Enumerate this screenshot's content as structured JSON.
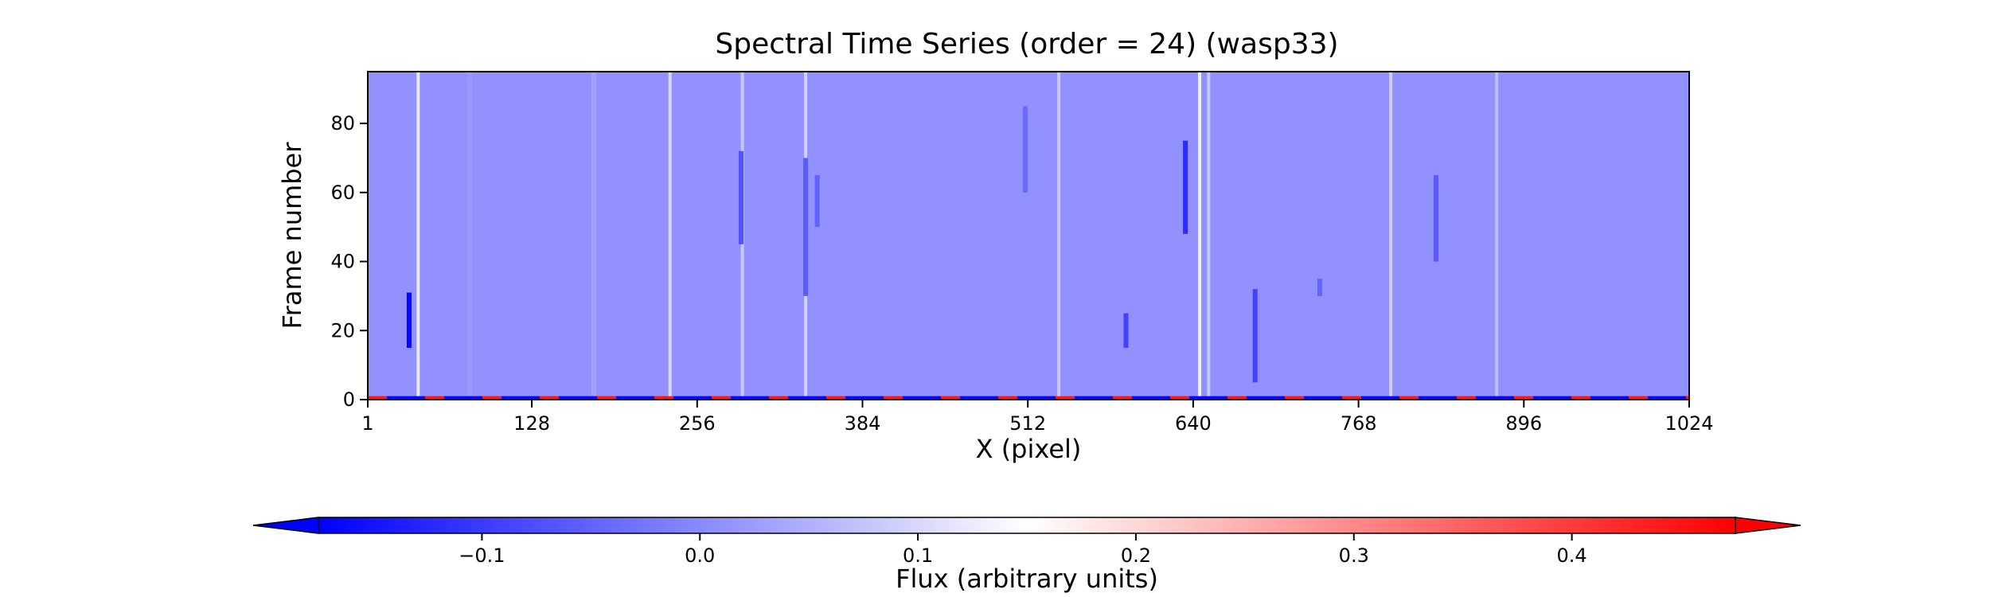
{
  "chart_data": {
    "type": "heatmap",
    "title": "Spectral Time Series (order = 24) (wasp33)",
    "xlabel": "X (pixel)",
    "ylabel": "Frame number",
    "xlim": [
      1,
      1024
    ],
    "ylim": [
      0,
      95
    ],
    "xticks": [
      1,
      128,
      256,
      384,
      512,
      640,
      768,
      896,
      1024
    ],
    "yticks": [
      0,
      20,
      40,
      60,
      80
    ],
    "grid": false,
    "colormap": "bwr",
    "colorbar": {
      "label": "Flux (arbitrary units)",
      "orientation": "horizontal",
      "placement": "bottom",
      "range": [
        -0.175,
        0.475
      ],
      "ticks": [
        -0.1,
        0.0,
        0.1,
        0.2,
        0.3,
        0.4
      ],
      "tick_labels": [
        "−0.1",
        "0.0",
        "0.1",
        "0.2",
        "0.3",
        "0.4"
      ],
      "extend": "both"
    },
    "background_value": 0.01,
    "absorption_lines": [
      {
        "x": 33,
        "value": -0.17,
        "y_range": [
          15,
          31
        ]
      },
      {
        "x": 80,
        "value": 0.02,
        "y_range": [
          0,
          95
        ]
      },
      {
        "x": 176,
        "value": 0.03,
        "y_range": [
          0,
          95
        ]
      },
      {
        "x": 290,
        "value": -0.07,
        "y_range": [
          45,
          72
        ]
      },
      {
        "x": 340,
        "value": -0.06,
        "y_range": [
          30,
          70
        ]
      },
      {
        "x": 349,
        "value": -0.05,
        "y_range": [
          50,
          65
        ]
      },
      {
        "x": 510,
        "value": -0.04,
        "y_range": [
          60,
          85
        ]
      },
      {
        "x": 588,
        "value": -0.09,
        "y_range": [
          15,
          25
        ]
      },
      {
        "x": 634,
        "value": -0.12,
        "y_range": [
          48,
          75
        ]
      },
      {
        "x": 688,
        "value": -0.09,
        "y_range": [
          5,
          32
        ]
      },
      {
        "x": 738,
        "value": -0.05,
        "y_range": [
          30,
          35
        ]
      },
      {
        "x": 828,
        "value": -0.06,
        "y_range": [
          40,
          65
        ]
      }
    ],
    "bright_lines": [
      {
        "x": 40,
        "value": 0.12
      },
      {
        "x": 235,
        "value": 0.1
      },
      {
        "x": 291,
        "value": 0.08
      },
      {
        "x": 340,
        "value": 0.09
      },
      {
        "x": 536,
        "value": 0.08
      },
      {
        "x": 645,
        "value": 0.13
      },
      {
        "x": 652,
        "value": 0.08
      },
      {
        "x": 793,
        "value": 0.09
      },
      {
        "x": 875,
        "value": 0.07
      }
    ],
    "frame0_row": {
      "y": 0,
      "pattern": "alternating",
      "values": [
        -0.17,
        0.45
      ]
    }
  }
}
